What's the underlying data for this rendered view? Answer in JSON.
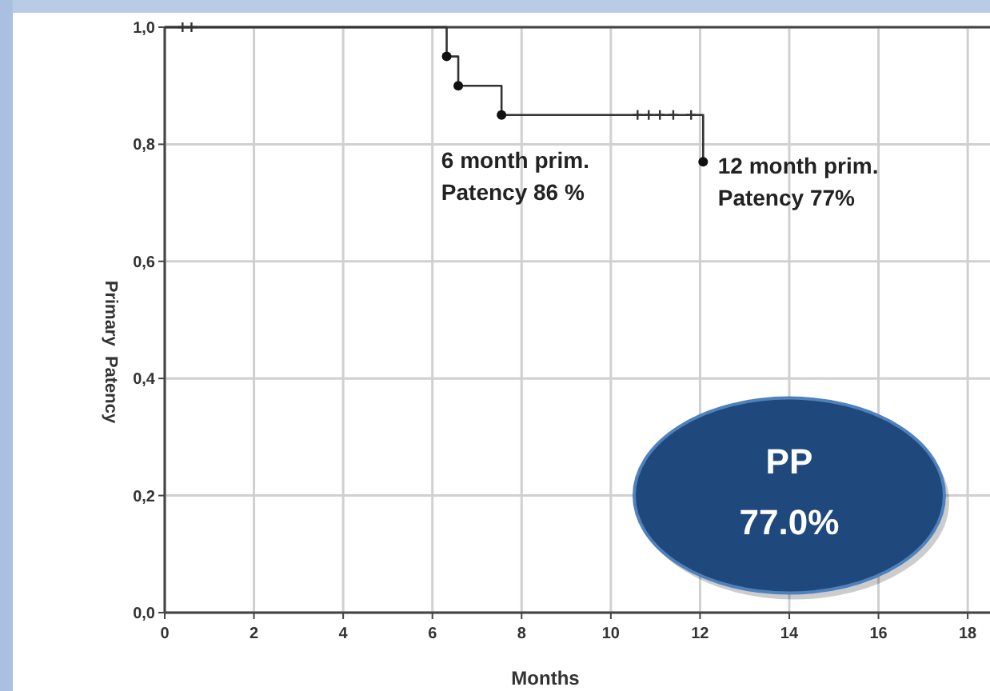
{
  "chart_data": {
    "type": "step",
    "xlabel": "Months",
    "ylabel": "Primary  Patency",
    "xlim": [
      0,
      18.5
    ],
    "ylim": [
      0,
      1
    ],
    "xticks": [
      0,
      2,
      4,
      6,
      8,
      10,
      12,
      14,
      16,
      18
    ],
    "yticks": [
      {
        "value": 0,
        "label": "0,0"
      },
      {
        "value": 0.2,
        "label": "0,2"
      },
      {
        "value": 0.4,
        "label": "0,4"
      },
      {
        "value": 0.6,
        "label": "0,6"
      },
      {
        "value": 0.8,
        "label": "0,8"
      },
      {
        "value": 1,
        "label": "1,0"
      }
    ],
    "grid": true,
    "series": [
      {
        "color": "#333333",
        "marker": "none",
        "x": [
          0,
          6.32,
          6.58,
          7.55,
          12.07
        ],
        "values": [
          1,
          0.95,
          0.9,
          0.85,
          0.77
        ]
      },
      {
        "type": "scatter",
        "color": "#111111",
        "marker": "circle",
        "x": [
          6.32,
          6.58,
          7.55,
          12.07
        ],
        "values": [
          0.95,
          0.9,
          0.85,
          0.77
        ]
      },
      {
        "type": "scatter",
        "color": "#333333",
        "marker": "cross",
        "x": [
          0.4,
          0.6,
          10.6,
          10.85,
          11.1,
          11.4,
          11.8
        ],
        "values": [
          1,
          1,
          0.85,
          0.85,
          0.85,
          0.85,
          0.85
        ]
      }
    ],
    "annotations": [
      "6 month prim.\nPatency 86 %",
      "12 month prim.\nPatency 77%",
      "PP\n77.0%"
    ]
  }
}
